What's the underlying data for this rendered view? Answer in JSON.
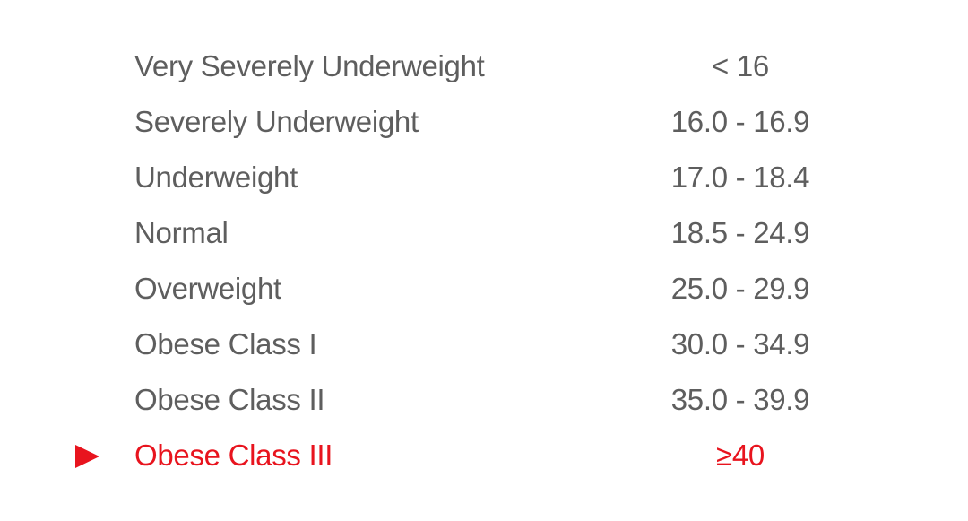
{
  "bmi_table": {
    "rows": [
      {
        "category": "Very Severely Underweight",
        "range": "< 16",
        "highlighted": false
      },
      {
        "category": "Severely Underweight",
        "range": "16.0 - 16.9",
        "highlighted": false
      },
      {
        "category": "Underweight",
        "range": "17.0 - 18.4",
        "highlighted": false
      },
      {
        "category": "Normal",
        "range": "18.5 - 24.9",
        "highlighted": false
      },
      {
        "category": "Overweight",
        "range": "25.0 - 29.9",
        "highlighted": false
      },
      {
        "category": "Obese Class I",
        "range": "30.0 - 34.9",
        "highlighted": false
      },
      {
        "category": "Obese Class II",
        "range": "35.0 - 39.9",
        "highlighted": false
      },
      {
        "category": "Obese Class III",
        "range": "≥40",
        "highlighted": true
      }
    ],
    "marker_icon": "triangle-right-icon"
  },
  "colors": {
    "text": "#5e5e5e",
    "highlight": "#e8141e",
    "background": "#ffffff"
  }
}
